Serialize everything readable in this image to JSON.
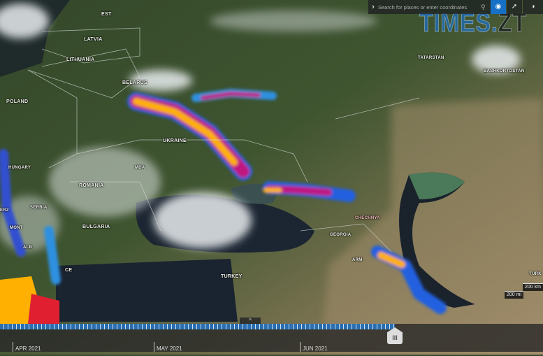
{
  "search": {
    "placeholder": "Search for places or enter coordinates"
  },
  "toolbar": {
    "location_icon": "map-pin-icon",
    "share_icon": "share-icon",
    "projection_icon": "globe-icon"
  },
  "watermark": "TIMES.ZT",
  "labels": {
    "est": "EST",
    "latvia": "LATVIA",
    "lithuania": "LITHUANIA",
    "poland": "POLAND",
    "belarus": "BELARUS",
    "ukraine": "UKRAINE",
    "hungary": "HUNGARY",
    "romania": "ROMANIA",
    "mda": "MDA",
    "serbia": "SERBIA",
    "bulgaria": "BULGARIA",
    "mont": "MONT",
    "alb": "ALB",
    "erz": "ERZ",
    "gce": "CE",
    "turkey": "TURKEY",
    "georgia": "GEORGIA",
    "arm": "ARM",
    "chechnya": "CHECHNYA",
    "tatarstan": "TATARSTAN",
    "bashkortostan": "BASHKORTOSTAN",
    "turk": "TURK"
  },
  "scale": {
    "km": "200 km",
    "mi": "200 mi"
  },
  "timeline": {
    "months": [
      "APR 2021",
      "MAY 2021",
      "JUN 2021"
    ],
    "handle": "III",
    "collapse": "^"
  },
  "colors": {
    "accent": "#1670c6",
    "plume_high": "#ffb000",
    "plume_mid": "#c01880",
    "plume_low": "#2060e0"
  }
}
